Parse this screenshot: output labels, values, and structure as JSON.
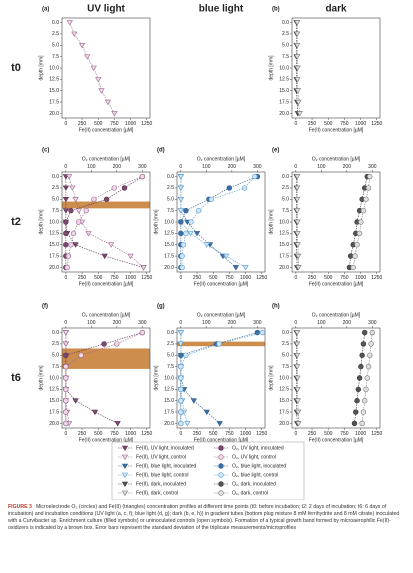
{
  "figure": {
    "columns": [
      "UV light",
      "blue light",
      "dark"
    ],
    "rows": [
      "t0",
      "t2",
      "t6"
    ],
    "panels": [
      {
        "label": "(a)",
        "band": null
      },
      {
        "label": "(b)",
        "band": null
      },
      {
        "label": "(c)",
        "band": [
          5.5,
          7
        ]
      },
      {
        "label": "(d)",
        "band": null
      },
      {
        "label": "(e)",
        "band": null
      },
      {
        "label": "(f)",
        "band": [
          3.5,
          8
        ]
      },
      {
        "label": "(g)",
        "band": [
          2,
          3
        ]
      },
      {
        "label": "(h)",
        "band": null
      }
    ],
    "depth_axis": {
      "label": "depth [mm]",
      "ylim": [
        -1,
        21
      ],
      "ticks": [
        {
          "value": 0,
          "label": "0.0"
        },
        {
          "value": 2.5,
          "label": "2.5"
        },
        {
          "value": 5,
          "label": "5.0"
        },
        {
          "value": 7.5,
          "label": "7.5"
        },
        {
          "value": 10,
          "label": "10.0"
        },
        {
          "value": 12.5,
          "label": "12.5"
        },
        {
          "value": 15,
          "label": "15.0"
        },
        {
          "value": 17.5,
          "label": "17.5"
        },
        {
          "value": 20,
          "label": "20.0"
        }
      ]
    },
    "fe_axis": {
      "label": "Fe(II) concentration [µM]",
      "xlim": [
        -60,
        1300
      ],
      "ticks": [
        0,
        250,
        500,
        750,
        1000,
        1250
      ]
    },
    "o2_axis": {
      "label": "O₂ concentration [µM]",
      "xlim": [
        -15,
        330
      ],
      "ticks": [
        0,
        100,
        200,
        300
      ]
    },
    "depths": [
      0,
      2.5,
      5,
      7.5,
      10,
      12.5,
      15,
      17.5,
      20
    ],
    "series": [
      {
        "name": "Fe(II), UV light, inoculated",
        "axis": "fe",
        "marker": "triangle",
        "color": "#5a2d50",
        "fill": "#7a4a6e",
        "values_by_panel": [
          null,
          null,
          [
            0,
            0,
            0,
            0,
            0,
            20,
            150,
            600,
            1200
          ],
          null,
          null,
          [
            0,
            0,
            0,
            0,
            0,
            0,
            150,
            450,
            800
          ],
          null,
          null
        ]
      },
      {
        "name": "Fe(II), UV light, control",
        "axis": "fe",
        "marker": "triangle",
        "color": "#9a6a8e",
        "fill": "#f0d6e8",
        "values_by_panel": [
          [
            60,
            130,
            250,
            330,
            430,
            500,
            550,
            650,
            750
          ],
          null,
          [
            50,
            100,
            150,
            200,
            250,
            350,
            700,
            1000,
            1200
          ],
          null,
          null,
          [
            0,
            0,
            0,
            0,
            0,
            0,
            0,
            20,
            50
          ],
          null,
          null
        ]
      },
      {
        "name": "Fe(II), blue light, inoculated",
        "axis": "fe",
        "marker": "triangle",
        "color": "#2b5a8a",
        "fill": "#3a6fa8",
        "values_by_panel": [
          null,
          null,
          null,
          [
            0,
            0,
            0,
            0,
            100,
            250,
            450,
            650,
            850
          ],
          null,
          null,
          [
            0,
            0,
            0,
            0,
            0,
            50,
            200,
            400,
            600
          ],
          null
        ]
      },
      {
        "name": "Fe(II), blue light, control",
        "axis": "fe",
        "marker": "triangle",
        "color": "#5b9bd0",
        "fill": "#cfe6f7",
        "values_by_panel": [
          null,
          null,
          null,
          [
            0,
            0,
            0,
            0,
            0,
            150,
            400,
            700,
            1000
          ],
          null,
          null,
          [
            0,
            0,
            0,
            0,
            0,
            0,
            20,
            50,
            100
          ],
          null
        ]
      },
      {
        "name": "Fe(II), dark, inoculated",
        "axis": "fe",
        "marker": "triangle",
        "color": "#333333",
        "fill": "#555555",
        "values_by_panel": [
          null,
          [
            10,
            10,
            10,
            10,
            10,
            10,
            10,
            20,
            30
          ],
          null,
          null,
          [
            10,
            10,
            10,
            10,
            10,
            10,
            10,
            15,
            20
          ],
          null,
          null,
          [
            10,
            10,
            10,
            10,
            10,
            10,
            10,
            15,
            20
          ]
        ]
      },
      {
        "name": "Fe(II), dark, control",
        "axis": "fe",
        "marker": "triangle",
        "color": "#777777",
        "fill": "#e0e0e0",
        "values_by_panel": [
          null,
          [
            20,
            20,
            20,
            20,
            25,
            25,
            30,
            40,
            60
          ],
          null,
          null,
          [
            20,
            20,
            20,
            20,
            25,
            25,
            30,
            35,
            40
          ],
          null,
          null,
          [
            20,
            20,
            20,
            20,
            25,
            25,
            30,
            35,
            40
          ]
        ]
      },
      {
        "name": "O₂, UV light, inoculated",
        "axis": "o2",
        "marker": "circle",
        "color": "#5a2d50",
        "fill": "#7a4a6e",
        "values_by_panel": [
          null,
          null,
          [
            300,
            230,
            160,
            20,
            0,
            0,
            0,
            0,
            0
          ],
          null,
          null,
          [
            300,
            150,
            0,
            0,
            0,
            0,
            0,
            0,
            0
          ],
          null,
          null
        ]
      },
      {
        "name": "O₂, UV light, control",
        "axis": "o2",
        "marker": "circle",
        "color": "#9a6a8e",
        "fill": "#f0d6e8",
        "values_by_panel": [
          null,
          null,
          [
            300,
            190,
            110,
            80,
            50,
            30,
            20,
            10,
            5
          ],
          null,
          null,
          [
            300,
            200,
            60,
            0,
            0,
            0,
            0,
            0,
            0
          ],
          null,
          null
        ]
      },
      {
        "name": "O₂, blue light, inoculated",
        "axis": "o2",
        "marker": "circle",
        "color": "#2b5a8a",
        "fill": "#3a6fa8",
        "values_by_panel": [
          null,
          null,
          null,
          [
            300,
            190,
            110,
            20,
            0,
            0,
            0,
            0,
            0
          ],
          null,
          null,
          [
            300,
            140,
            0,
            0,
            0,
            0,
            0,
            0,
            0
          ],
          null
        ]
      },
      {
        "name": "O₂, blue light, control",
        "axis": "o2",
        "marker": "circle",
        "color": "#5b9bd0",
        "fill": "#cfe6f7",
        "values_by_panel": [
          null,
          null,
          null,
          [
            290,
            250,
            120,
            70,
            40,
            20,
            10,
            5,
            5
          ],
          null,
          null,
          [
            320,
            150,
            20,
            0,
            0,
            0,
            0,
            0,
            0
          ],
          null
        ]
      },
      {
        "name": "O₂, dark, inoculated",
        "axis": "o2",
        "marker": "circle",
        "color": "#333333",
        "fill": "#555555",
        "values_by_panel": [
          null,
          null,
          null,
          null,
          [
            280,
            270,
            260,
            250,
            240,
            235,
            225,
            215,
            210
          ],
          null,
          null,
          [
            270,
            265,
            260,
            255,
            250,
            245,
            240,
            235,
            230
          ]
        ]
      },
      {
        "name": "O₂, dark, control",
        "axis": "o2",
        "marker": "circle",
        "color": "#777777",
        "fill": "#e0e0e0",
        "values_by_panel": [
          null,
          null,
          null,
          null,
          [
            290,
            285,
            275,
            265,
            255,
            250,
            240,
            232,
            225
          ],
          null,
          null,
          [
            300,
            295,
            290,
            285,
            280,
            275,
            270,
            265,
            260
          ]
        ]
      }
    ],
    "caption": {
      "number": "FIGURE 3",
      "text": "Microelectrode O₂ (circles) and Fe(II) (triangles) concentration profiles at different time points (t0: before incubation; t2: 2 days of incubation; t6: 6 days of incubation) and incubation conditions (UV light (a, c, f); blue light (d, g); dark (b, e, h)) in gradient tubes (bottom plug mixture 8 mM ferrihydrite and 8 mM citrate) inoculated with a Curvibacter sp. Enrichment culture (filled symbols) or uninoculated controls (open symbols). Formation of a typical growth band formed by microaerophilic Fe(II)-oxidizers is indicated by a brown box. Error bars represent the standard deviation of the triplicate measurements/microprofiles"
    }
  }
}
